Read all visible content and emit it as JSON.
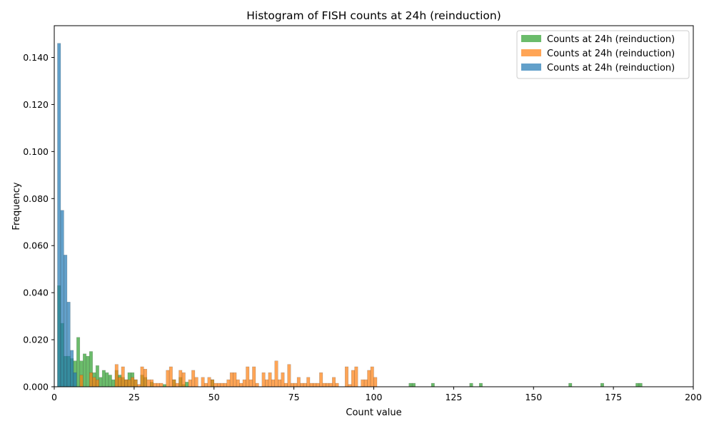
{
  "chart_data": {
    "type": "bar",
    "title": "Histogram of FISH counts at 24h (reinduction)",
    "xlabel": "Count value",
    "ylabel": "Frequency",
    "xlim": [
      0,
      200
    ],
    "ylim": [
      0,
      0.1535
    ],
    "bin_width": 1,
    "xticks": [
      0,
      25,
      50,
      75,
      100,
      125,
      150,
      175,
      200
    ],
    "xtick_labels": [
      "0",
      "25",
      "50",
      "75",
      "100",
      "125",
      "150",
      "175",
      "200"
    ],
    "yticks": [
      0,
      0.02,
      0.04,
      0.06,
      0.08,
      0.1,
      0.12,
      0.14
    ],
    "ytick_labels": [
      "0.000",
      "0.020",
      "0.040",
      "0.060",
      "0.080",
      "0.100",
      "0.120",
      "0.140"
    ],
    "grid": false,
    "legend_position": "top-right",
    "series": [
      {
        "name": "Counts at 24h (reinduction)",
        "color": "#2ca02c",
        "bins": [
          [
            1,
            0.043
          ],
          [
            2,
            0.027
          ],
          [
            3,
            0.013
          ],
          [
            4,
            0.013
          ],
          [
            5,
            0.012
          ],
          [
            6,
            0.011
          ],
          [
            7,
            0.021
          ],
          [
            8,
            0.011
          ],
          [
            9,
            0.014
          ],
          [
            10,
            0.013
          ],
          [
            11,
            0.015
          ],
          [
            12,
            0.006
          ],
          [
            13,
            0.009
          ],
          [
            14,
            0.004
          ],
          [
            15,
            0.007
          ],
          [
            16,
            0.006
          ],
          [
            17,
            0.005
          ],
          [
            18,
            0.003
          ],
          [
            19,
            0.007
          ],
          [
            20,
            0.005
          ],
          [
            21,
            0.004
          ],
          [
            22,
            0.003
          ],
          [
            23,
            0.006
          ],
          [
            24,
            0.006
          ],
          [
            25,
            0.003
          ],
          [
            27,
            0.005
          ],
          [
            28,
            0.004
          ],
          [
            30,
            0.002
          ],
          [
            34,
            0.001
          ],
          [
            37,
            0.003
          ],
          [
            39,
            0.004
          ],
          [
            40,
            0.001
          ],
          [
            41,
            0.002
          ],
          [
            49,
            0.003
          ],
          [
            111,
            0.0015
          ],
          [
            112,
            0.0015
          ],
          [
            118,
            0.0015
          ],
          [
            130,
            0.0015
          ],
          [
            133,
            0.0015
          ],
          [
            161,
            0.0015
          ],
          [
            171,
            0.0015
          ],
          [
            182,
            0.0015
          ],
          [
            183,
            0.0015
          ]
        ]
      },
      {
        "name": "Counts at 24h (reinduction)",
        "color": "#ff7f0e",
        "bins": [
          [
            8,
            0.005
          ],
          [
            11,
            0.006
          ],
          [
            12,
            0.004
          ],
          [
            13,
            0.003
          ],
          [
            19,
            0.0095
          ],
          [
            20,
            0.004
          ],
          [
            21,
            0.0085
          ],
          [
            22,
            0.003
          ],
          [
            23,
            0.003
          ],
          [
            24,
            0.004
          ],
          [
            25,
            0.003
          ],
          [
            26,
            0.001
          ],
          [
            27,
            0.0085
          ],
          [
            28,
            0.0075
          ],
          [
            29,
            0.003
          ],
          [
            30,
            0.003
          ],
          [
            31,
            0.0015
          ],
          [
            32,
            0.0015
          ],
          [
            33,
            0.0015
          ],
          [
            35,
            0.007
          ],
          [
            36,
            0.0085
          ],
          [
            37,
            0.003
          ],
          [
            38,
            0.0015
          ],
          [
            39,
            0.007
          ],
          [
            40,
            0.006
          ],
          [
            42,
            0.003
          ],
          [
            43,
            0.007
          ],
          [
            44,
            0.004
          ],
          [
            46,
            0.004
          ],
          [
            47,
            0.0015
          ],
          [
            48,
            0.004
          ],
          [
            49,
            0.003
          ],
          [
            50,
            0.0015
          ],
          [
            51,
            0.0015
          ],
          [
            52,
            0.0015
          ],
          [
            53,
            0.0015
          ],
          [
            54,
            0.003
          ],
          [
            55,
            0.006
          ],
          [
            56,
            0.006
          ],
          [
            57,
            0.003
          ],
          [
            58,
            0.0015
          ],
          [
            59,
            0.003
          ],
          [
            60,
            0.0085
          ],
          [
            61,
            0.003
          ],
          [
            62,
            0.0085
          ],
          [
            63,
            0.0015
          ],
          [
            65,
            0.006
          ],
          [
            66,
            0.003
          ],
          [
            67,
            0.006
          ],
          [
            68,
            0.003
          ],
          [
            69,
            0.011
          ],
          [
            70,
            0.003
          ],
          [
            71,
            0.006
          ],
          [
            72,
            0.0015
          ],
          [
            73,
            0.0095
          ],
          [
            74,
            0.0015
          ],
          [
            75,
            0.0015
          ],
          [
            76,
            0.004
          ],
          [
            77,
            0.0015
          ],
          [
            78,
            0.0015
          ],
          [
            79,
            0.004
          ],
          [
            80,
            0.0015
          ],
          [
            81,
            0.0015
          ],
          [
            82,
            0.0015
          ],
          [
            83,
            0.006
          ],
          [
            84,
            0.0015
          ],
          [
            85,
            0.0015
          ],
          [
            86,
            0.0015
          ],
          [
            87,
            0.004
          ],
          [
            88,
            0.0015
          ],
          [
            91,
            0.0085
          ],
          [
            92,
            0.001
          ],
          [
            93,
            0.007
          ],
          [
            94,
            0.0085
          ],
          [
            96,
            0.003
          ],
          [
            97,
            0.003
          ],
          [
            98,
            0.007
          ],
          [
            99,
            0.0085
          ],
          [
            100,
            0.004
          ]
        ]
      },
      {
        "name": "Counts at 24h (reinduction)",
        "color": "#1f77b4",
        "bins": [
          [
            1,
            0.146
          ],
          [
            2,
            0.075
          ],
          [
            3,
            0.056
          ],
          [
            4,
            0.036
          ],
          [
            5,
            0.0155
          ],
          [
            6,
            0.006
          ]
        ]
      }
    ]
  }
}
